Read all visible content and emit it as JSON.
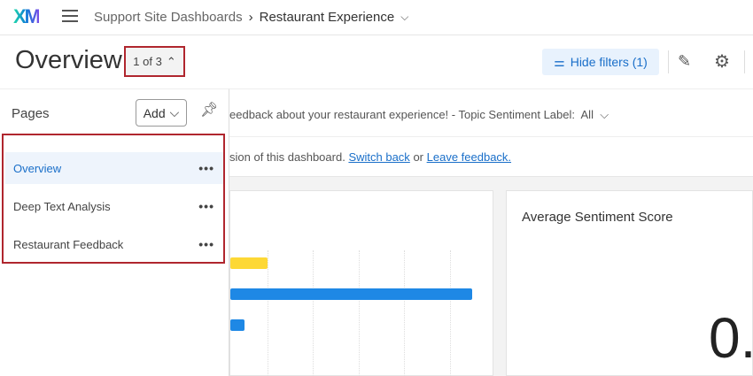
{
  "header": {
    "logo": "XM",
    "breadcrumb": [
      "Support Site Dashboards",
      "Restaurant Experience"
    ]
  },
  "title_row": {
    "title": "Overview",
    "pager": "1 of 3",
    "hide_filters": "Hide filters (1)"
  },
  "sidebar": {
    "label": "Pages",
    "add_label": "Add",
    "items": [
      {
        "label": "Overview",
        "active": true
      },
      {
        "label": "Deep Text Analysis"
      },
      {
        "label": "Restaurant Feedback"
      }
    ]
  },
  "filterbar": {
    "text": "eedback about your restaurant experience! - Topic Sentiment Label:",
    "value": "All"
  },
  "notice": {
    "text": "sion of this dashboard.",
    "link1": "Switch back",
    "or": "or",
    "link2": "Leave feedback."
  },
  "card2": {
    "title": "Average Sentiment Score",
    "value": "0."
  },
  "colors": {
    "accent": "#1a6fc9",
    "highlight": "#b0262e",
    "bar_yellow": "#fdd835",
    "bar_blue": "#1e88e5"
  },
  "chart_data": {
    "type": "bar",
    "orientation": "horizontal",
    "values": [
      1,
      5.5,
      0.5
    ],
    "colors": [
      "#fdd835",
      "#1e88e5",
      "#1e88e5"
    ],
    "grid": true
  }
}
